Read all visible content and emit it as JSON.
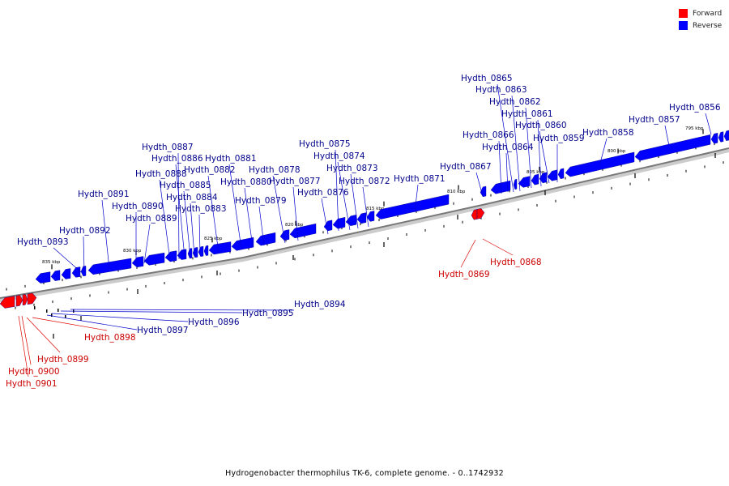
{
  "legend": {
    "forward_label": "Forward",
    "reverse_label": "Reverse",
    "forward_color": "#ff0000",
    "reverse_color": "#0000ff"
  },
  "caption": "Hydrogenobacter thermophilus TK-6, complete genome. - 0..1742932",
  "scale_labels": [
    "835 kbp",
    "830 kbp",
    "825 kbp",
    "820 kbp",
    "815 kbp",
    "810 kbp",
    "805 kbp",
    "800 kbp",
    "795 kbp"
  ],
  "reverse_genes": [
    "Hydth_0856",
    "Hydth_0857",
    "Hydth_0858",
    "Hydth_0859",
    "Hydth_0860",
    "Hydth_0861",
    "Hydth_0862",
    "Hydth_0863",
    "Hydth_0864",
    "Hydth_0865",
    "Hydth_0866",
    "Hydth_0867",
    "Hydth_0871",
    "Hydth_0872",
    "Hydth_0873",
    "Hydth_0874",
    "Hydth_0875",
    "Hydth_0876",
    "Hydth_0877",
    "Hydth_0878",
    "Hydth_0879",
    "Hydth_0880",
    "Hydth_0881",
    "Hydth_0882",
    "Hydth_0883",
    "Hydth_0884",
    "Hydth_0885",
    "Hydth_0886",
    "Hydth_0887",
    "Hydth_0888",
    "Hydth_0889",
    "Hydth_0890",
    "Hydth_0891",
    "Hydth_0892",
    "Hydth_0893",
    "Hydth_0894",
    "Hydth_0895",
    "Hydth_0896",
    "Hydth_0897"
  ],
  "forward_genes": [
    "Hydth_0868",
    "Hydth_0869",
    "Hydth_0898",
    "Hydth_0899",
    "Hydth_0900",
    "Hydth_0901"
  ]
}
